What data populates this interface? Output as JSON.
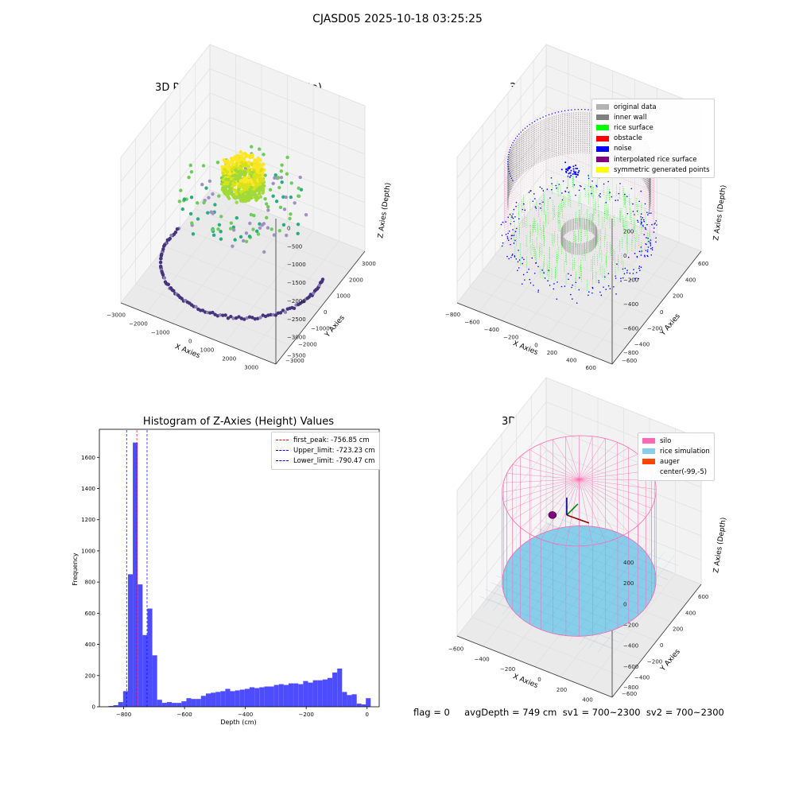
{
  "figure": {
    "title": "CJASD05 2025-10-18 03:25:25",
    "status_text": "flag = 0     avgDepth = 749 cm  sv1 = 700~2300  sv2 = 700~2300"
  },
  "panels": {
    "raw": {
      "title": "3D Plot of Silo Interior(row data)",
      "xlabel": "X Axies",
      "ylabel": "Y Axies",
      "zlabel": "Z Axies (Depth)",
      "x_ticks": [
        "−3000",
        "−2000",
        "−1000",
        "0",
        "1000",
        "2000",
        "3000"
      ],
      "y_ticks": [
        "−3000",
        "−2000",
        "−1000",
        "0",
        "1000",
        "2000",
        "3000"
      ],
      "z_ticks": [
        "0",
        "−500",
        "−1000",
        "−1500",
        "−2000",
        "−2500",
        "−3000",
        "−3500"
      ]
    },
    "classify": {
      "title": "3D classify of Silo Interior",
      "xlabel": "X Axies",
      "ylabel": "Y Axies",
      "zlabel": "Z Axies (Depth)",
      "x_ticks": [
        "−800",
        "−600",
        "−400",
        "−200",
        "0",
        "200",
        "400",
        "600"
      ],
      "y_ticks": [
        "−600",
        "−400",
        "−200",
        "0",
        "200",
        "400",
        "600"
      ],
      "z_ticks": [
        "200",
        "0",
        "−200",
        "−400",
        "−600",
        "−800"
      ],
      "legend": [
        {
          "label": "original data",
          "color": "#b3b3b3"
        },
        {
          "label": "inner wall",
          "color": "#808080"
        },
        {
          "label": "rice surface",
          "color": "#00ff00"
        },
        {
          "label": "obstacle",
          "color": "#ff0000"
        },
        {
          "label": "noise",
          "color": "#0000ff"
        },
        {
          "label": "interpolated rice surface",
          "color": "#800080"
        },
        {
          "label": "symmetric generated points",
          "color": "#ffff00"
        }
      ]
    },
    "histogram": {
      "title": "Histogram of Z-Axies (Height) Values",
      "xlabel": "Depth (cm)",
      "ylabel": "Frequency",
      "legend": [
        {
          "label": "first_peak: -756.85 cm",
          "color": "#ff0000"
        },
        {
          "label": "Upper_limit: -723.23 cm",
          "color": "#0000ff"
        },
        {
          "label": "Lower_limit: -790.47 cm",
          "color": "#0000ff"
        }
      ]
    },
    "simulation": {
      "title": "3D simulation of Silo Interior",
      "xlabel": "X Axies",
      "ylabel": "Y Axies",
      "zlabel": "Z Axies (Depth)",
      "x_ticks": [
        "−600",
        "−400",
        "−200",
        "0",
        "200",
        "400"
      ],
      "y_ticks": [
        "−600",
        "−400",
        "−200",
        "0",
        "200",
        "400",
        "600"
      ],
      "z_ticks": [
        "400",
        "200",
        "0",
        "−200",
        "−400",
        "−600",
        "−800"
      ],
      "legend": [
        {
          "label": "silo",
          "color": "#ff69b4"
        },
        {
          "label": "rice simulation",
          "color": "#87ceeb"
        },
        {
          "label": "auger",
          "color": "#ff4500"
        },
        {
          "label": "center(-99,-5)",
          "color": ""
        }
      ]
    }
  },
  "chart_data": [
    {
      "type": "scatter",
      "title": "3D Plot of Silo Interior(row data)",
      "xlabel": "X Axies",
      "ylabel": "Y Axies",
      "zlabel": "Z Axies (Depth)",
      "xlim": [
        -3500,
        3500
      ],
      "ylim": [
        -3500,
        3500
      ],
      "zlim": [
        -3800,
        300
      ],
      "colormap": "viridis",
      "groups": [
        {
          "description": "dense top cluster",
          "x_range": [
            -700,
            700
          ],
          "y_range": [
            -700,
            700
          ],
          "z_range": [
            -1300,
            -600
          ]
        },
        {
          "description": "ring",
          "radius": 3000,
          "z": -3700
        }
      ]
    },
    {
      "type": "scatter",
      "title": "3D classify of Silo Interior",
      "xlabel": "X Axies",
      "ylabel": "Y Axies",
      "zlabel": "Z Axies (Depth)",
      "xlim": [
        -850,
        650
      ],
      "ylim": [
        -700,
        700
      ],
      "zlim": [
        -900,
        300
      ]
    },
    {
      "type": "bar",
      "title": "Histogram of Z-Axies (Height) Values",
      "xlabel": "Depth (cm)",
      "ylabel": "Frequency",
      "xlim": [
        -880,
        40
      ],
      "ylim": [
        0,
        1780
      ],
      "x_ticks": [
        -800,
        -600,
        -400,
        -200,
        0
      ],
      "y_ticks": [
        0,
        200,
        400,
        600,
        800,
        1000,
        1200,
        1400,
        1600
      ],
      "bin_width": 16,
      "bins": [
        {
          "x0": -850,
          "count": 5
        },
        {
          "x0": -834,
          "count": 10
        },
        {
          "x0": -818,
          "count": 30
        },
        {
          "x0": -802,
          "count": 100
        },
        {
          "x0": -786,
          "count": 850
        },
        {
          "x0": -770,
          "count": 1695
        },
        {
          "x0": -754,
          "count": 785
        },
        {
          "x0": -738,
          "count": 460
        },
        {
          "x0": -722,
          "count": 630
        },
        {
          "x0": -706,
          "count": 330
        },
        {
          "x0": -690,
          "count": 45
        },
        {
          "x0": -674,
          "count": 25
        },
        {
          "x0": -658,
          "count": 30
        },
        {
          "x0": -642,
          "count": 25
        },
        {
          "x0": -626,
          "count": 25
        },
        {
          "x0": -610,
          "count": 35
        },
        {
          "x0": -594,
          "count": 55
        },
        {
          "x0": -578,
          "count": 50
        },
        {
          "x0": -562,
          "count": 50
        },
        {
          "x0": -546,
          "count": 70
        },
        {
          "x0": -530,
          "count": 85
        },
        {
          "x0": -514,
          "count": 90
        },
        {
          "x0": -498,
          "count": 95
        },
        {
          "x0": -482,
          "count": 100
        },
        {
          "x0": -466,
          "count": 115
        },
        {
          "x0": -450,
          "count": 100
        },
        {
          "x0": -434,
          "count": 105
        },
        {
          "x0": -418,
          "count": 110
        },
        {
          "x0": -402,
          "count": 115
        },
        {
          "x0": -386,
          "count": 125
        },
        {
          "x0": -370,
          "count": 120
        },
        {
          "x0": -354,
          "count": 125
        },
        {
          "x0": -338,
          "count": 130
        },
        {
          "x0": -322,
          "count": 130
        },
        {
          "x0": -306,
          "count": 140
        },
        {
          "x0": -290,
          "count": 145
        },
        {
          "x0": -274,
          "count": 140
        },
        {
          "x0": -258,
          "count": 150
        },
        {
          "x0": -242,
          "count": 150
        },
        {
          "x0": -226,
          "count": 145
        },
        {
          "x0": -210,
          "count": 165
        },
        {
          "x0": -194,
          "count": 155
        },
        {
          "x0": -178,
          "count": 170
        },
        {
          "x0": -162,
          "count": 170
        },
        {
          "x0": -146,
          "count": 175
        },
        {
          "x0": -130,
          "count": 185
        },
        {
          "x0": -114,
          "count": 220
        },
        {
          "x0": -98,
          "count": 245
        },
        {
          "x0": -82,
          "count": 95
        },
        {
          "x0": -66,
          "count": 75
        },
        {
          "x0": -50,
          "count": 80
        },
        {
          "x0": -34,
          "count": 20
        },
        {
          "x0": -18,
          "count": 15
        },
        {
          "x0": -4,
          "count": 55
        }
      ],
      "bar_color": "#4d4dff",
      "vlines": [
        {
          "name": "first_peak",
          "x": -756.85,
          "color": "#ff0000",
          "style": "dashed"
        },
        {
          "name": "Upper_limit",
          "x": -723.23,
          "color": "#0000ff",
          "style": "dashed"
        },
        {
          "name": "Lower_limit",
          "x": -790.47,
          "color": "#0000ff",
          "style": "dashed"
        }
      ],
      "legend_position": "top-right"
    },
    {
      "type": "scatter",
      "title": "3D simulation of Silo Interior",
      "xlabel": "X Axies",
      "ylabel": "Y Axies",
      "zlabel": "Z Axies (Depth)",
      "xlim": [
        -700,
        500
      ],
      "ylim": [
        -700,
        700
      ],
      "zlim": [
        -900,
        500
      ],
      "center": [
        -99,
        -5
      ]
    }
  ]
}
